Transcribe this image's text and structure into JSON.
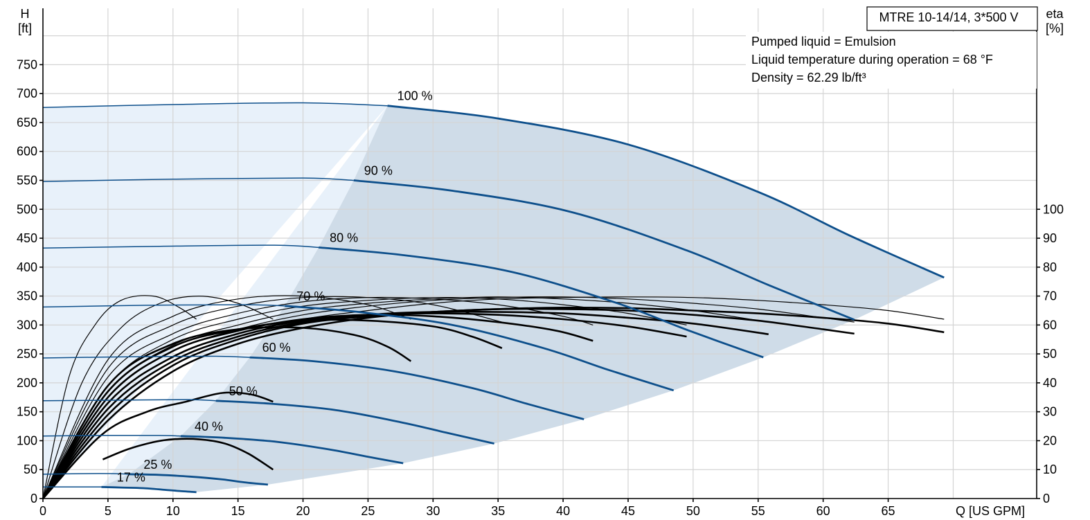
{
  "chart_data": {
    "type": "line",
    "title": "MTRE 10-14/14, 3*500 V",
    "info": [
      "Pumped liquid = Emulsion",
      "Liquid temperature during operation = 68 °F",
      "Density = 62.29 lb/ft³"
    ],
    "ylabel_lines": [
      "H",
      "[ft]"
    ],
    "y2label_lines": [
      "eta",
      "[%]"
    ],
    "xlabel": "Q [US GPM]",
    "xlim": [
      0,
      70
    ],
    "ylim": [
      0,
      800
    ],
    "y2lim": [
      0,
      100
    ],
    "x_ticks": [
      0,
      5,
      10,
      15,
      20,
      25,
      30,
      35,
      40,
      45,
      50,
      55,
      60,
      65
    ],
    "y_ticks": [
      0,
      50,
      100,
      150,
      200,
      250,
      300,
      350,
      400,
      450,
      500,
      550,
      600,
      650,
      700,
      750
    ],
    "y2_ticks": [
      0,
      10,
      20,
      30,
      40,
      50,
      60,
      70,
      80,
      90,
      100
    ],
    "colors": {
      "head_curve": "#0d4f8b",
      "eta_curve": "#000000",
      "region_low_flow": "#e8f1fa",
      "region_operating": "#cfdce8",
      "grid": "#d4d4d4"
    },
    "series": [
      {
        "name": "100 %",
        "speed": 1.0,
        "x": [
          0,
          10,
          20,
          26.5,
          35,
          45,
          55,
          62,
          69.3
        ],
        "y": [
          676,
          681,
          684,
          679,
          657,
          612,
          530,
          455,
          382
        ]
      },
      {
        "name": "90 %",
        "speed": 0.9,
        "x": [
          0,
          10,
          20,
          23.9,
          31.5,
          40.5,
          49.5,
          55.8,
          62.4
        ],
        "y": [
          548,
          552,
          554,
          550,
          532,
          496,
          429,
          369,
          309
        ]
      },
      {
        "name": "80 %",
        "speed": 0.8,
        "x": [
          0,
          9,
          17.8,
          21.2,
          28,
          36,
          44,
          49.6,
          55.4
        ],
        "y": [
          433,
          436,
          438,
          434,
          420,
          392,
          339,
          291,
          244
        ]
      },
      {
        "name": "70 %",
        "speed": 0.7,
        "x": [
          0,
          7.9,
          15.5,
          18.6,
          24.5,
          31.5,
          38.5,
          43.4,
          48.5
        ],
        "y": [
          331,
          334,
          335,
          333,
          322,
          300,
          260,
          223,
          187
        ]
      },
      {
        "name": "60 %",
        "speed": 0.6,
        "x": [
          0,
          6.8,
          13.3,
          15.9,
          21,
          27,
          33,
          37.2,
          41.6
        ],
        "y": [
          243,
          245,
          246,
          244,
          237,
          220,
          191,
          164,
          137
        ]
      },
      {
        "name": "50 %",
        "speed": 0.5,
        "x": [
          0,
          5.6,
          11.1,
          13.3,
          17.5,
          22.5,
          27.5,
          31,
          34.7
        ],
        "y": [
          169,
          170,
          171,
          169,
          164,
          153,
          132,
          114,
          95
        ]
      },
      {
        "name": "40 %",
        "speed": 0.4,
        "x": [
          0,
          4.5,
          8.9,
          10.6,
          14,
          18,
          22,
          24.8,
          27.7
        ],
        "y": [
          108,
          109,
          109,
          108,
          105,
          98,
          85,
          73,
          61
        ]
      },
      {
        "name": "25 %",
        "speed": 0.25,
        "x": [
          0,
          2.8,
          5.6,
          6.6,
          8.8,
          11.3,
          13.8,
          15.5,
          17.3
        ],
        "y": [
          42,
          43,
          43,
          42,
          41,
          38,
          33,
          28,
          24
        ]
      },
      {
        "name": "17 %",
        "speed": 0.17,
        "x": [
          0,
          1.9,
          3.8,
          4.5,
          6,
          7.7,
          9.4,
          10.5,
          11.8
        ],
        "y": [
          20,
          20,
          20,
          20,
          19,
          18,
          15,
          13,
          11
        ]
      }
    ],
    "efficiency_curves": {
      "thick": [
        {
          "x": [
            0,
            5,
            10,
            15,
            20,
            25,
            30,
            35,
            40,
            45,
            50,
            55,
            60,
            65,
            69.3
          ],
          "y": [
            0,
            27,
            44,
            53.5,
            59,
            62.5,
            64.5,
            65.5,
            66,
            65.8,
            65,
            64,
            62.5,
            60.5,
            57.5
          ]
        },
        {
          "x": [
            0,
            5,
            10,
            15,
            20,
            25,
            30,
            35,
            40,
            45,
            50,
            55,
            60,
            62.4
          ],
          "y": [
            0,
            29,
            46,
            55,
            60.5,
            63,
            64.5,
            65.5,
            65.5,
            65,
            63.5,
            61.5,
            58.5,
            57
          ]
        },
        {
          "x": [
            0,
            5,
            10,
            15,
            20,
            25,
            30,
            35,
            40,
            45,
            50,
            55.8
          ],
          "y": [
            0,
            31,
            47.5,
            56,
            61,
            63.5,
            64.5,
            64.5,
            64,
            62.5,
            60.5,
            56.8
          ]
        },
        {
          "x": [
            0,
            5,
            10,
            15,
            20,
            25,
            30,
            35,
            40,
            45,
            49.5
          ],
          "y": [
            0,
            33,
            49,
            57,
            61.5,
            63.5,
            64,
            63.5,
            62,
            59.5,
            56
          ]
        },
        {
          "x": [
            0,
            5,
            10,
            15,
            20,
            25,
            30,
            35,
            39.5,
            42.3
          ],
          "y": [
            0,
            35,
            51,
            58,
            62,
            63.5,
            63,
            61,
            58,
            54.5
          ]
        },
        {
          "x": [
            0,
            5,
            10,
            15,
            20,
            25,
            30,
            33,
            35.3
          ],
          "y": [
            0,
            37,
            52.5,
            58.5,
            61.5,
            61.5,
            59.5,
            56,
            52
          ]
        },
        {
          "x": [
            0,
            5,
            10,
            15,
            20,
            24,
            26.5,
            28.3
          ],
          "y": [
            0,
            39,
            53.5,
            58.5,
            59,
            56.5,
            52.5,
            47.5
          ]
        },
        {
          "x": [
            4.6,
            6.5,
            8.5,
            10,
            12,
            14,
            15.8,
            17.7
          ],
          "y": [
            13.5,
            17,
            19.5,
            20.5,
            20.5,
            19,
            15.5,
            10
          ]
        },
        {
          "x": [
            0,
            4.5,
            8,
            11,
            13.8,
            16,
            17.7
          ],
          "y": [
            0,
            22,
            30,
            33.5,
            36.5,
            36,
            33.5
          ]
        }
      ],
      "thin": [
        {
          "x": [
            0,
            5,
            10,
            15,
            20,
            25,
            30,
            35,
            40,
            45,
            50,
            55,
            60,
            65,
            69.3
          ],
          "y": [
            0,
            33,
            49,
            57,
            62,
            65,
            67.5,
            69,
            69.5,
            69.7,
            69.5,
            68.5,
            67,
            65,
            62
          ]
        },
        {
          "x": [
            0,
            5,
            10,
            15,
            20,
            25,
            30,
            35,
            40,
            45,
            50,
            55,
            60,
            62.4
          ],
          "y": [
            0,
            35,
            51,
            58.5,
            63.5,
            66.5,
            68.5,
            69.5,
            69.7,
            69,
            67.5,
            65.5,
            62.5,
            61
          ]
        },
        {
          "x": [
            0,
            5,
            10,
            15,
            20,
            25,
            30,
            35,
            40,
            45,
            50,
            55.8
          ],
          "y": [
            0,
            37,
            53,
            60,
            65,
            67.5,
            69,
            69.7,
            69,
            67.5,
            65,
            61
          ]
        },
        {
          "x": [
            0,
            5,
            10,
            15,
            20,
            25,
            30,
            35,
            40,
            45,
            49.5
          ],
          "y": [
            0,
            39,
            55,
            62,
            66.5,
            68.5,
            69.5,
            69,
            67,
            64,
            60
          ]
        },
        {
          "x": [
            0,
            5,
            10,
            15,
            20,
            25,
            30,
            35,
            40,
            42.3
          ],
          "y": [
            0,
            42,
            57,
            64,
            68,
            69.5,
            69,
            67,
            63,
            60
          ]
        },
        {
          "x": [
            0,
            5,
            10,
            15,
            20,
            25,
            30,
            35.3
          ],
          "y": [
            0,
            45,
            60,
            66.5,
            69.5,
            69.5,
            67,
            61
          ]
        },
        {
          "x": [
            0,
            5,
            10,
            15,
            20,
            25,
            28.3
          ],
          "y": [
            0,
            48,
            63,
            69,
            70,
            67,
            62
          ]
        },
        {
          "x": [
            0,
            3,
            6,
            9,
            12,
            15,
            17.7
          ],
          "y": [
            0,
            40,
            59,
            67.5,
            70,
            67.5,
            62
          ]
        },
        {
          "x": [
            0,
            2,
            4,
            6,
            8.5,
            10.5,
            11.8
          ],
          "y": [
            0,
            42,
            60,
            68.5,
            70,
            66,
            62
          ]
        }
      ]
    }
  }
}
